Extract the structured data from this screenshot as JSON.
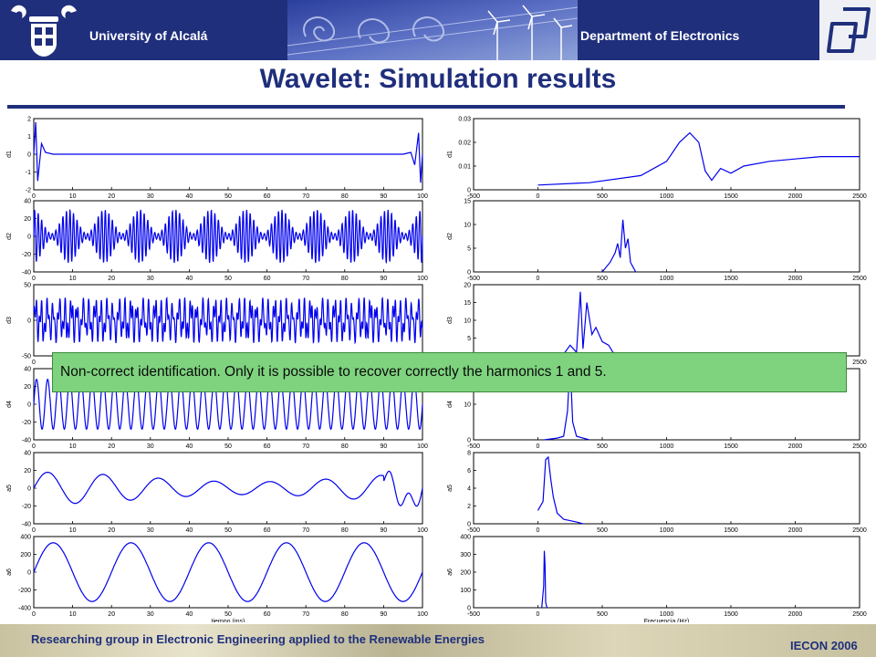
{
  "header": {
    "university": "University of Alcalá",
    "department": "Department of Electronics"
  },
  "slide": {
    "title": "Wavelet: Simulation results",
    "callout": "Non-correct identification. Only it is possible to recover correctly the harmonics 1 and 5."
  },
  "footer": {
    "group": "Researching group in Electronic Engineering applied to the Renewable Energies",
    "conference": "IECON 2006"
  },
  "colors": {
    "header_bg": "#1f2f7c",
    "signal": "#0000ee",
    "callout_bg": "#7fd37f"
  },
  "chart_data": [
    {
      "type": "line",
      "column": "time",
      "ylabel": "d1",
      "xlabel": "",
      "xlim": [
        0,
        100
      ],
      "ylim": [
        -2,
        2
      ],
      "xticks": [
        "0",
        "10",
        "20",
        "30",
        "40",
        "50",
        "60",
        "70",
        "80",
        "90",
        "100"
      ],
      "yticks": [
        "2",
        "1",
        "0",
        "-1",
        "-2"
      ],
      "description_signal": "near zero except transients at both ends",
      "x": [
        0,
        0.5,
        1,
        2,
        3,
        5,
        50,
        95,
        97,
        98,
        99,
        99.5,
        100
      ],
      "y": [
        0,
        1.8,
        -1.5,
        0.6,
        0.1,
        0,
        0,
        0,
        0.1,
        -0.6,
        1.2,
        -1.6,
        0
      ]
    },
    {
      "type": "line",
      "column": "time",
      "ylabel": "d2",
      "xlabel": "",
      "xlim": [
        0,
        100
      ],
      "ylim": [
        -40,
        40
      ],
      "xticks": [
        "0",
        "10",
        "20",
        "30",
        "40",
        "50",
        "60",
        "70",
        "80",
        "90",
        "100"
      ],
      "yticks": [
        "40",
        "20",
        "0",
        "-20",
        "-40"
      ],
      "signal": {
        "kind": "beat",
        "amplitude": 30,
        "carrier_cycles": 110,
        "envelope_cycles": 11
      }
    },
    {
      "type": "line",
      "column": "time",
      "ylabel": "d3",
      "xlabel": "",
      "xlim": [
        0,
        100
      ],
      "ylim": [
        -50,
        50
      ],
      "xticks": [
        "0",
        "10",
        "20",
        "30",
        "40",
        "50",
        "60",
        "70",
        "80",
        "90",
        "100"
      ],
      "yticks": [
        "50",
        "0",
        "-50"
      ],
      "signal": {
        "kind": "spiky",
        "amplitude": 40,
        "carrier_cycles": 65
      }
    },
    {
      "type": "line",
      "column": "time",
      "ylabel": "d4",
      "xlabel": "",
      "xlim": [
        0,
        100
      ],
      "ylim": [
        -40,
        40
      ],
      "xticks": [
        "0",
        "10",
        "20",
        "30",
        "40",
        "50",
        "60",
        "70",
        "80",
        "90",
        "100"
      ],
      "yticks": [
        "40",
        "20",
        "0",
        "-20",
        "-40"
      ],
      "signal": {
        "kind": "sine",
        "amplitude": 28,
        "carrier_cycles": 35
      }
    },
    {
      "type": "line",
      "column": "time",
      "ylabel": "a5",
      "xlabel": "",
      "xlim": [
        0,
        100
      ],
      "ylim": [
        -40,
        40
      ],
      "xticks": [
        "0",
        "10",
        "20",
        "30",
        "40",
        "50",
        "60",
        "70",
        "80",
        "90",
        "100"
      ],
      "yticks": [
        "40",
        "20",
        "0",
        "-20",
        "-40"
      ],
      "signal": {
        "kind": "sum",
        "amplitude": 18,
        "carrier_cycles": 7
      }
    },
    {
      "type": "line",
      "column": "time",
      "ylabel": "a6",
      "xlabel": "tiempo (ms)",
      "xlim": [
        0,
        100
      ],
      "ylim": [
        -400,
        400
      ],
      "xticks": [
        "0",
        "10",
        "20",
        "30",
        "40",
        "50",
        "60",
        "70",
        "80",
        "90",
        "100"
      ],
      "yticks": [
        "400",
        "200",
        "0",
        "-200",
        "-400"
      ],
      "signal": {
        "kind": "sine",
        "amplitude": 330,
        "carrier_cycles": 5
      }
    },
    {
      "type": "line",
      "column": "freq",
      "ylabel": "d1",
      "xlabel": "",
      "xlim": [
        -500,
        2500
      ],
      "ylim": [
        0,
        0.03
      ],
      "xticks": [
        "-500",
        "0",
        "500",
        "1000",
        "1500",
        "2000",
        "2500"
      ],
      "yticks": [
        "0.03",
        "0.02",
        "0.01",
        "0"
      ],
      "x": [
        0,
        400,
        800,
        1000,
        1100,
        1180,
        1250,
        1300,
        1350,
        1420,
        1500,
        1600,
        1800,
        2000,
        2200,
        2500
      ],
      "y": [
        0.002,
        0.003,
        0.006,
        0.012,
        0.02,
        0.024,
        0.02,
        0.008,
        0.004,
        0.009,
        0.007,
        0.01,
        0.012,
        0.013,
        0.014,
        0.014
      ]
    },
    {
      "type": "line",
      "column": "freq",
      "ylabel": "d2",
      "xlabel": "",
      "xlim": [
        -500,
        2500
      ],
      "ylim": [
        0,
        15
      ],
      "xticks": [
        "-500",
        "0",
        "500",
        "1000",
        "1500",
        "2000",
        "2500"
      ],
      "yticks": [
        "15",
        "10",
        "5",
        "0"
      ],
      "x": [
        500,
        560,
        600,
        620,
        640,
        660,
        680,
        700,
        720,
        740,
        760
      ],
      "y": [
        0,
        2,
        4,
        6,
        3,
        11,
        5,
        7,
        2,
        1,
        0
      ]
    },
    {
      "type": "line",
      "column": "freq",
      "ylabel": "d3",
      "xlabel": "",
      "xlim": [
        -500,
        2500
      ],
      "ylim": [
        0,
        20
      ],
      "xticks": [
        "-500",
        "0",
        "500",
        "1000",
        "1500",
        "2000",
        "2500"
      ],
      "yticks": [
        "20",
        "15",
        "10",
        "5",
        "0"
      ],
      "x": [
        0,
        200,
        250,
        300,
        330,
        350,
        380,
        420,
        450,
        500,
        550,
        600
      ],
      "y": [
        0,
        0.5,
        3,
        1,
        18,
        2,
        15,
        6,
        8,
        4,
        3,
        0
      ]
    },
    {
      "type": "line",
      "column": "freq",
      "ylabel": "d4",
      "xlabel": "",
      "xlim": [
        -500,
        2500
      ],
      "ylim": [
        0,
        20
      ],
      "xticks": [
        "-500",
        "0",
        "500",
        "1000",
        "1500",
        "2000",
        "2500"
      ],
      "yticks": [
        "20",
        "10",
        "0"
      ],
      "x": [
        50,
        150,
        200,
        230,
        250,
        270,
        300,
        400
      ],
      "y": [
        0,
        0.5,
        1,
        8,
        22,
        5,
        1,
        0
      ]
    },
    {
      "type": "line",
      "column": "freq",
      "ylabel": "a5",
      "xlabel": "",
      "xlim": [
        -500,
        2500
      ],
      "ylim": [
        0,
        8
      ],
      "xticks": [
        "-500",
        "0",
        "500",
        "1000",
        "1500",
        "2000",
        "2500"
      ],
      "yticks": [
        "8",
        "6",
        "4",
        "2",
        "0"
      ],
      "x": [
        0,
        40,
        60,
        80,
        100,
        120,
        150,
        200,
        300,
        350
      ],
      "y": [
        1.5,
        2.5,
        7.2,
        7.5,
        5,
        3,
        1.2,
        0.5,
        0.2,
        0
      ]
    },
    {
      "type": "line",
      "column": "freq",
      "ylabel": "a6",
      "xlabel": "Frecuencia (Hz)",
      "xlim": [
        -500,
        2500
      ],
      "ylim": [
        0,
        400
      ],
      "xticks": [
        "-500",
        "0",
        "500",
        "1000",
        "1500",
        "2000",
        "2500"
      ],
      "yticks": [
        "400",
        "300",
        "200",
        "100",
        "0"
      ],
      "x": [
        30,
        45,
        50,
        55,
        60,
        70
      ],
      "y": [
        0,
        120,
        320,
        240,
        30,
        0
      ]
    }
  ]
}
